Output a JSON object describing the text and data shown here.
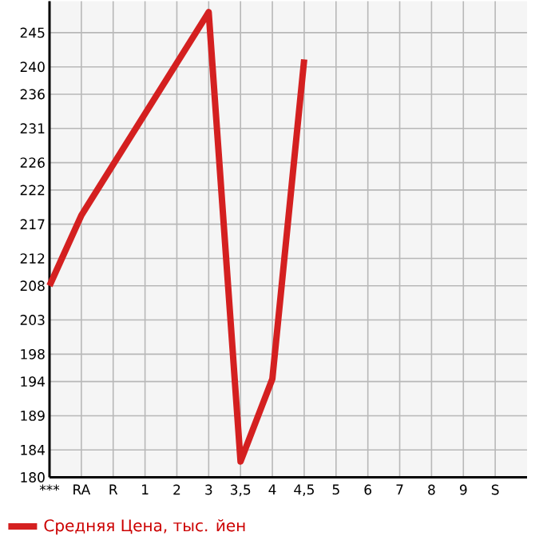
{
  "chart_data": {
    "type": "line",
    "categories": [
      "***",
      "RA",
      "R",
      "1",
      "2",
      "3",
      "3,5",
      "4",
      "4,5",
      "5",
      "6",
      "7",
      "8",
      "9",
      "S"
    ],
    "series": [
      {
        "name": "Средняя Цена, тыс. йен",
        "color": "#d42020",
        "values": [
          208,
          218.3,
          null,
          null,
          null,
          248,
          182.3,
          194.4,
          241.1,
          null,
          null,
          null,
          null,
          null,
          null
        ]
      }
    ],
    "ylim": [
      180,
      249.6
    ],
    "yticks": [
      180,
      184,
      189,
      194,
      198,
      203,
      208,
      212,
      217,
      222,
      226,
      231,
      236,
      240,
      245
    ],
    "grid": true,
    "legend": "bottom left",
    "marker": "none",
    "line_style": "solid"
  }
}
